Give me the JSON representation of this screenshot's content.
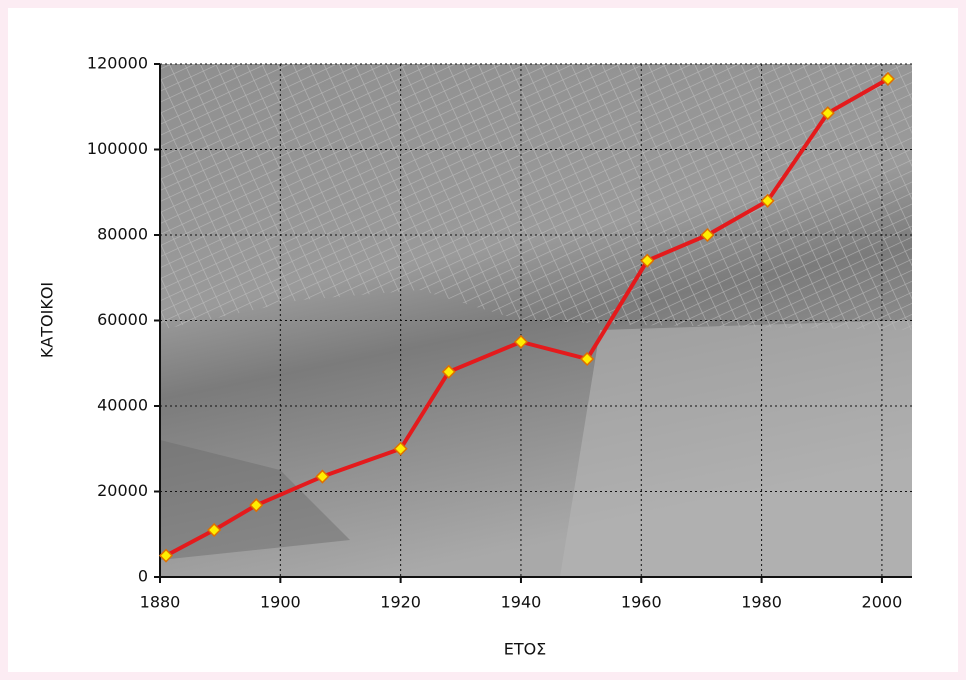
{
  "chart_data": {
    "type": "line",
    "x_label": "ΕΤΟΣ",
    "y_label": "ΚΑΤΟΙΚΟΙ",
    "x": [
      1881,
      1889,
      1896,
      1907,
      1920,
      1928,
      1940,
      1951,
      1961,
      1971,
      1981,
      1991,
      2001
    ],
    "series": [
      {
        "color": "#e41a1c",
        "marker_color": "#ffee00",
        "values": [
          5000,
          11000,
          16800,
          23500,
          30000,
          48000,
          55000,
          51000,
          74000,
          80000,
          88000,
          108500,
          116500
        ]
      }
    ],
    "xlim": [
      1880,
      2005
    ],
    "xticks": [
      1880,
      1900,
      1920,
      1940,
      1960,
      1980,
      2000
    ],
    "ylim": [
      0,
      120000
    ],
    "yticks": [
      0,
      20000,
      40000,
      60000,
      80000,
      100000,
      120000
    ],
    "grid": true
  }
}
